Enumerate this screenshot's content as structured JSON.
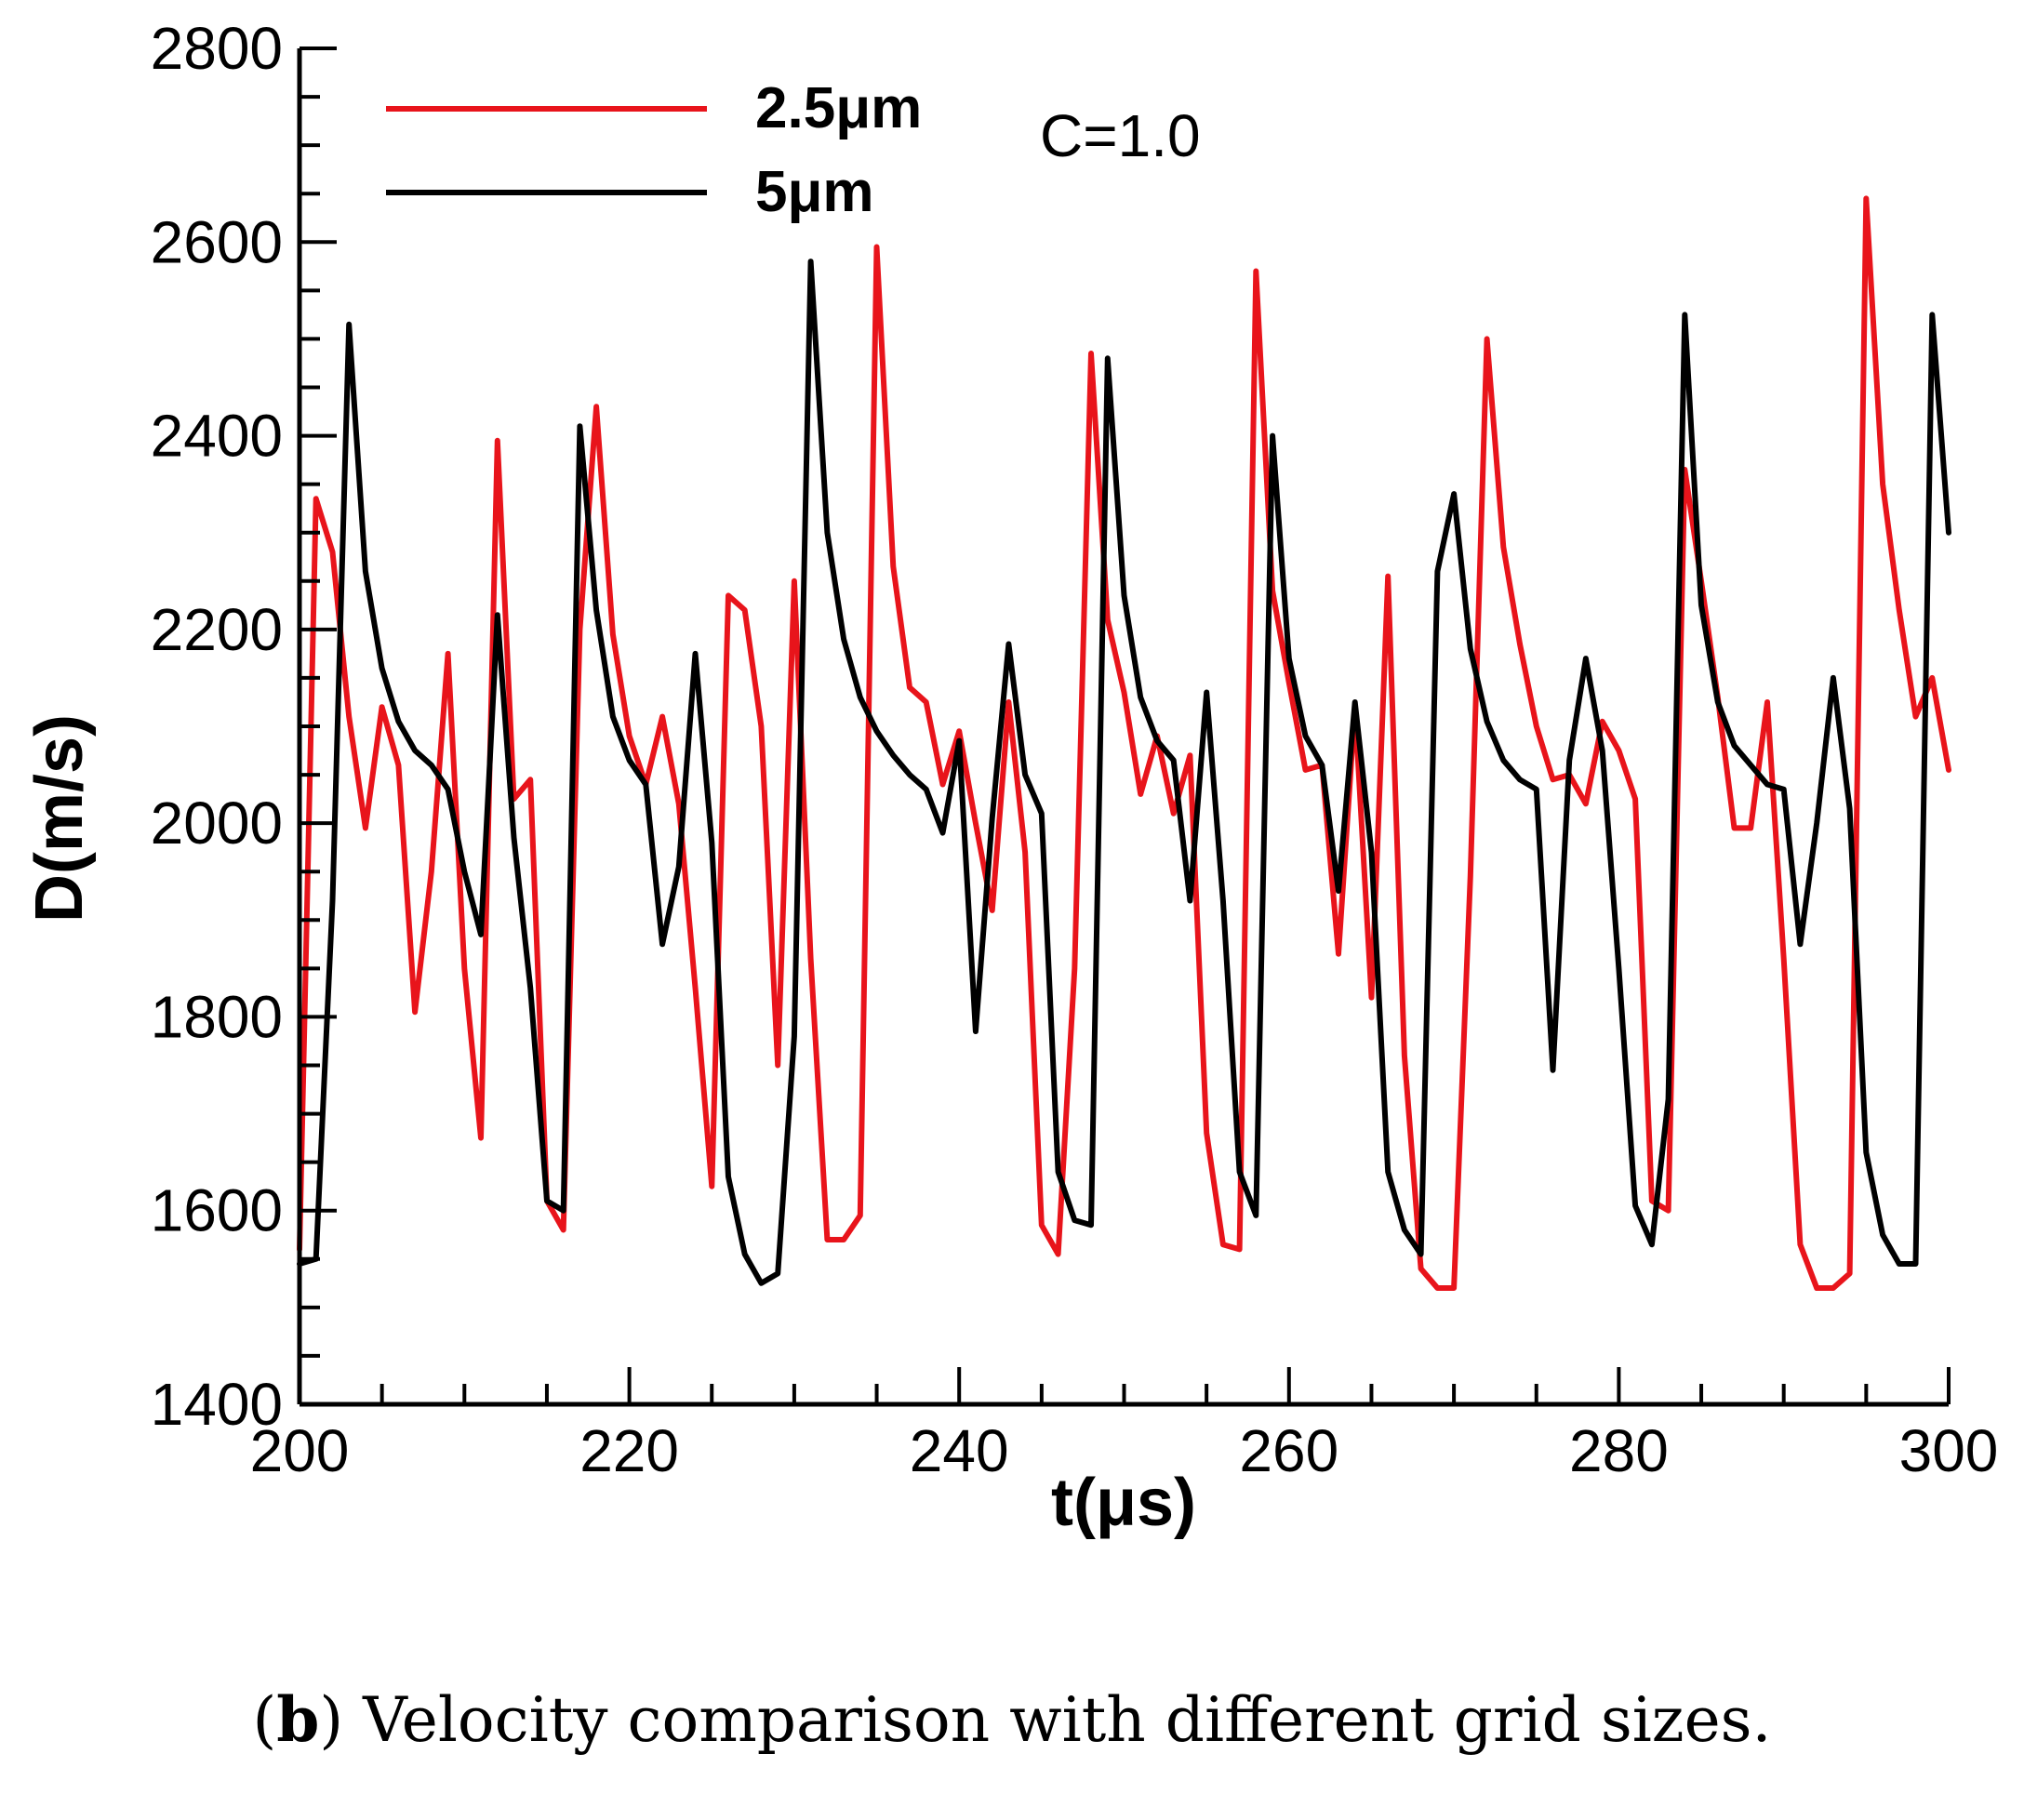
{
  "chart_data": {
    "type": "line",
    "title": "",
    "xlabel": "t(μs)",
    "ylabel": "D(m/s)",
    "xlim": [
      200,
      300
    ],
    "ylim": [
      1400,
      2800
    ],
    "x_ticks": [
      200,
      220,
      240,
      260,
      280,
      300
    ],
    "y_ticks": [
      1400,
      1600,
      1800,
      2000,
      2200,
      2400,
      2600,
      2800
    ],
    "x_tick_labels": [
      "200",
      "220",
      "240",
      "260",
      "280",
      "300"
    ],
    "y_tick_labels": [
      "1400",
      "1600",
      "1800",
      "2000",
      "2200",
      "2400",
      "2600",
      "2800"
    ],
    "annotation": "C=1.0",
    "legend_position": "top-left",
    "series": [
      {
        "name": "2.5μm",
        "color": "#e8141b",
        "x": [
          200,
          201,
          202,
          203,
          204,
          205,
          206,
          207,
          208,
          209,
          210,
          211,
          212,
          213,
          214,
          215,
          216,
          217,
          218,
          219,
          220,
          221,
          222,
          223,
          224,
          225,
          226,
          227,
          228,
          229,
          230,
          231,
          232,
          233,
          234,
          235,
          236,
          237,
          238,
          239,
          240,
          241,
          242,
          243,
          244,
          245,
          246,
          247,
          248,
          249,
          250,
          251,
          252,
          253,
          254,
          255,
          256,
          257,
          258,
          259,
          260,
          261,
          262,
          263,
          264,
          265,
          266,
          267,
          268,
          269,
          270,
          271,
          272,
          273,
          274,
          275,
          276,
          277,
          278,
          279,
          280,
          281,
          282,
          283,
          284,
          285,
          286,
          287,
          288,
          289,
          290,
          291,
          292,
          293,
          294,
          295,
          296,
          297,
          298,
          299,
          300
        ],
        "values": [
          1560,
          2335,
          2280,
          2110,
          1995,
          2120,
          2060,
          1805,
          1950,
          2175,
          1850,
          1675,
          2395,
          2025,
          2045,
          1610,
          1580,
          2200,
          2430,
          2195,
          2090,
          2040,
          2110,
          2020,
          1830,
          1625,
          2235,
          2220,
          2100,
          1750,
          2250,
          1860,
          1570,
          1570,
          1595,
          2595,
          2265,
          2140,
          2125,
          2040,
          2095,
          2000,
          1910,
          2125,
          1970,
          1585,
          1555,
          1850,
          2485,
          2210,
          2135,
          2030,
          2090,
          2010,
          2070,
          1680,
          1565,
          1560,
          2570,
          2240,
          2145,
          2055,
          2060,
          1865,
          2120,
          1820,
          2255,
          1760,
          1540,
          1520,
          1520,
          1945,
          2500,
          2285,
          2185,
          2100,
          2045,
          2050,
          2020,
          2105,
          2075,
          2025,
          1610,
          1600,
          2365,
          2250,
          2130,
          1995,
          1995,
          2125,
          1860,
          1565,
          1520,
          1520,
          1535,
          2645,
          2350,
          2220,
          2110,
          2150,
          2055
        ]
      },
      {
        "name": "5μm",
        "color": "#000000",
        "x": [
          200,
          201,
          202,
          203,
          204,
          205,
          206,
          207,
          208,
          209,
          210,
          211,
          212,
          213,
          214,
          215,
          216,
          217,
          218,
          219,
          220,
          221,
          222,
          223,
          224,
          225,
          226,
          227,
          228,
          229,
          230,
          231,
          232,
          233,
          234,
          235,
          236,
          237,
          238,
          239,
          240,
          241,
          242,
          243,
          244,
          245,
          246,
          247,
          248,
          249,
          250,
          251,
          252,
          253,
          254,
          255,
          256,
          257,
          258,
          259,
          260,
          261,
          262,
          263,
          264,
          265,
          266,
          267,
          268,
          269,
          270,
          271,
          272,
          273,
          274,
          275,
          276,
          277,
          278,
          279,
          280,
          281,
          282,
          283,
          284,
          285,
          286,
          287,
          288,
          289,
          290,
          291,
          292,
          293,
          294,
          295,
          296,
          297,
          298,
          299,
          300
        ],
        "values": [
          1545,
          1550,
          1920,
          2515,
          2260,
          2160,
          2105,
          2075,
          2060,
          2035,
          1950,
          1885,
          2215,
          1985,
          1830,
          1610,
          1600,
          2410,
          2220,
          2110,
          2065,
          2040,
          1875,
          1955,
          2175,
          1980,
          1635,
          1555,
          1525,
          1535,
          1780,
          2580,
          2300,
          2190,
          2130,
          2095,
          2070,
          2050,
          2035,
          1990,
          2085,
          1785,
          2005,
          2185,
          2050,
          2010,
          1640,
          1590,
          1585,
          2480,
          2235,
          2130,
          2085,
          2065,
          1920,
          2135,
          1920,
          1640,
          1595,
          2400,
          2170,
          2090,
          2060,
          1930,
          2125,
          1970,
          1640,
          1580,
          1555,
          2260,
          2340,
          2180,
          2105,
          2065,
          2045,
          2035,
          1745,
          2065,
          2170,
          2075,
          1850,
          1605,
          1565,
          1715,
          2525,
          2225,
          2125,
          2080,
          2060,
          2040,
          2035,
          1875,
          2000,
          2150,
          2015,
          1660,
          1575,
          1545,
          1545,
          2525,
          2300
        ]
      }
    ]
  },
  "caption": {
    "label": "b",
    "text": " Velocity comparison with different grid sizes."
  }
}
